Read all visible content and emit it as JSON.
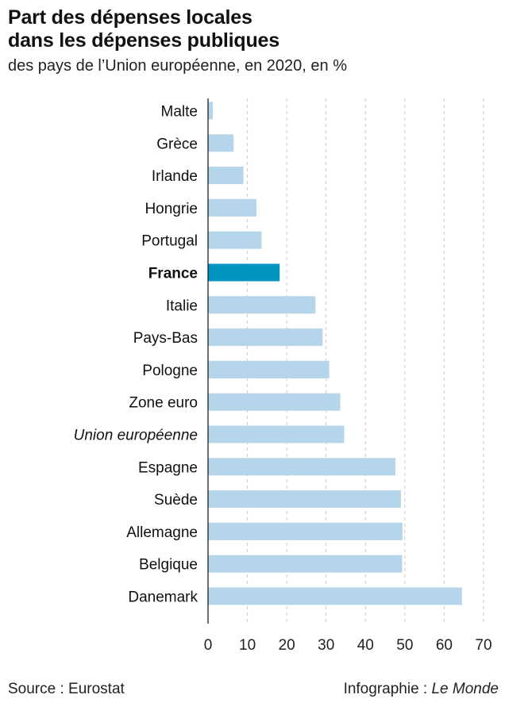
{
  "title_line1": "Part des dépenses locales",
  "title_line2": "dans les dépenses publiques",
  "subtitle": "des pays de l’Union européenne, en 2020, en %",
  "source": "Source : Eurostat",
  "credit_prefix": "Infographie : ",
  "credit_brand": "Le Monde",
  "colors": {
    "bar": "#b5d5ea",
    "highlight": "#0095c1",
    "grid": "#c8c8c8",
    "axis": "#222222"
  },
  "chart_data": {
    "type": "bar",
    "orientation": "horizontal",
    "categories": [
      "Malte",
      "Grèce",
      "Irlande",
      "Hongrie",
      "Portugal",
      "France",
      "Italie",
      "Pays-Bas",
      "Pologne",
      "Zone euro",
      "Union européenne",
      "Espagne",
      "Suède",
      "Allemagne",
      "Belgique",
      "Danemark"
    ],
    "values": [
      1.2,
      6.5,
      9.0,
      12.3,
      13.6,
      18.2,
      27.3,
      29.1,
      30.8,
      33.6,
      34.6,
      47.6,
      49.0,
      49.4,
      49.3,
      64.5
    ],
    "highlight": "France",
    "italic": "Union européenne",
    "xlim": [
      0,
      70
    ],
    "xticks": [
      "0",
      "10",
      "20",
      "30",
      "40",
      "50",
      "60",
      "70"
    ],
    "grid": true
  }
}
